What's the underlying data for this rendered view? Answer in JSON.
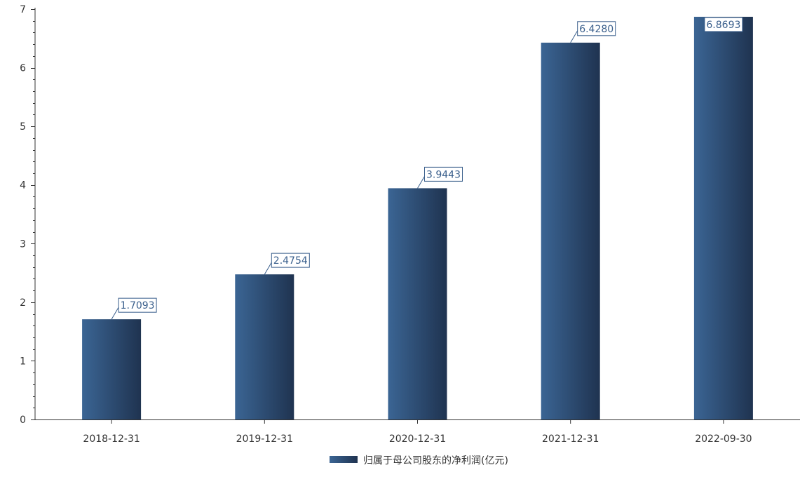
{
  "chart_data": {
    "type": "bar",
    "categories": [
      "2018-12-31",
      "2019-12-31",
      "2020-12-31",
      "2021-12-31",
      "2022-09-30"
    ],
    "series": [
      {
        "name": "归属于母公司股东的净利润(亿元)",
        "values": [
          1.7093,
          2.4754,
          3.9443,
          6.428,
          6.8693
        ],
        "data_labels": [
          "1.7093",
          "2.4754",
          "3.9443",
          "6.4280",
          "6.8693"
        ]
      }
    ],
    "ylim": [
      0,
      7
    ],
    "yticks": [
      0,
      1,
      2,
      3,
      4,
      5,
      6,
      7
    ],
    "ytick_labels": [
      "0",
      "1",
      "2",
      "3",
      "4",
      "5",
      "6",
      "7"
    ],
    "grid": false,
    "legend_position": "bottom-center",
    "colors": {
      "bar_light": "#3b6594",
      "bar_dark": "#1f3350",
      "label": "#3a5f8c",
      "axis": "#333333"
    }
  }
}
